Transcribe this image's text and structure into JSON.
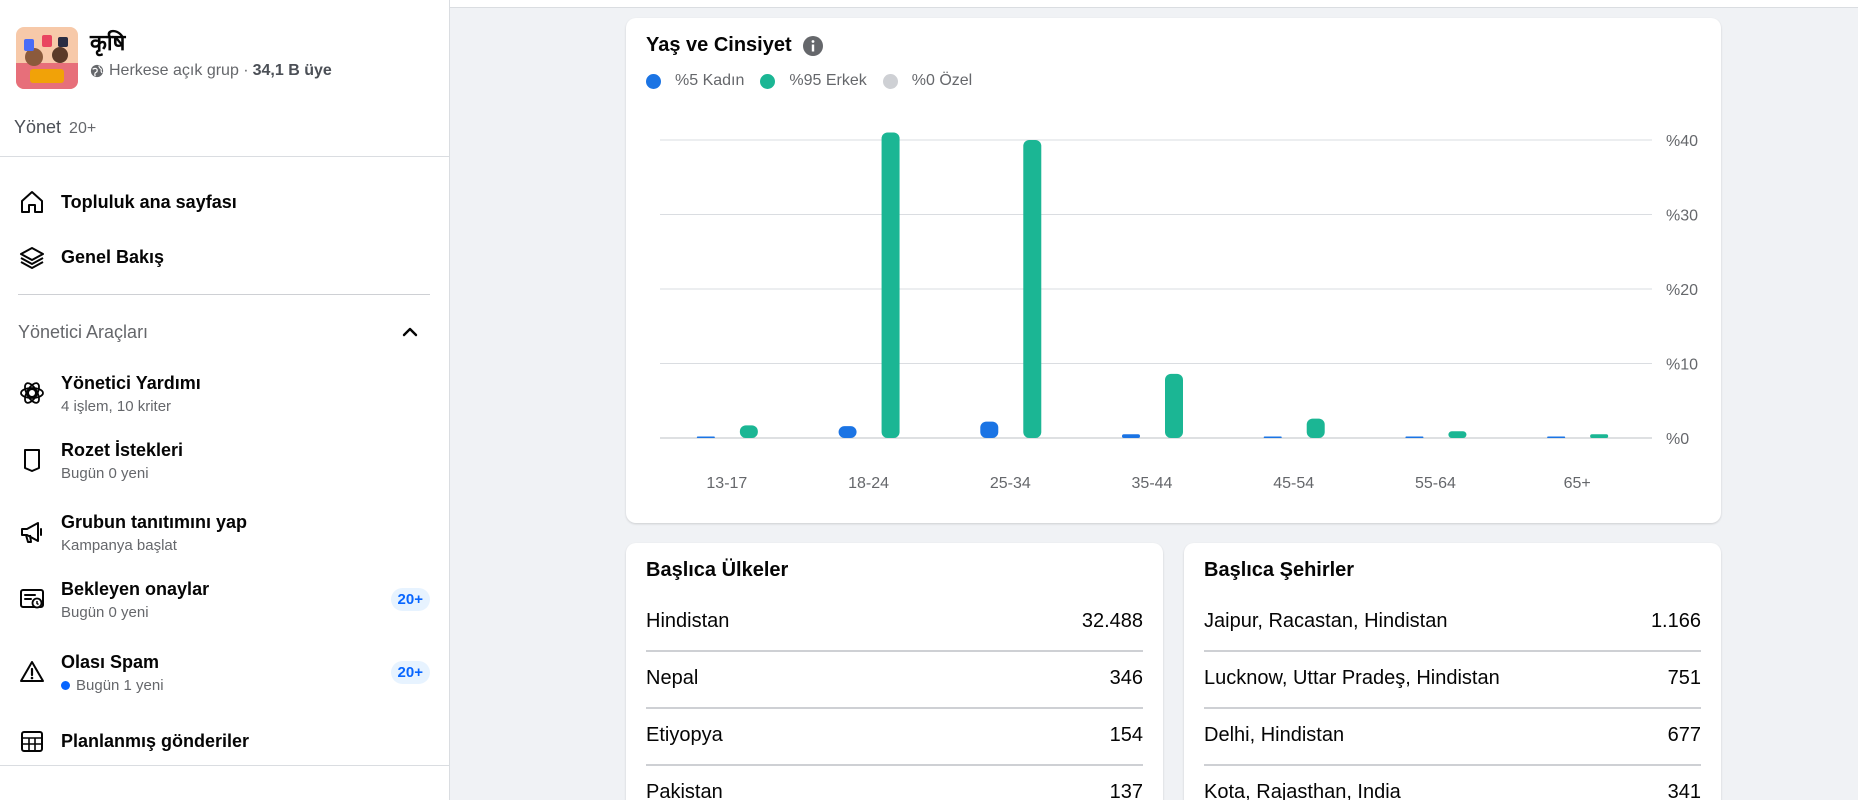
{
  "group": {
    "name": "कृषि",
    "privacy": "Herkese açık grup ·",
    "members": "34,1 B üye"
  },
  "manage": {
    "label": "Yönet",
    "count": "20+"
  },
  "nav": [
    {
      "label": "Topluluk ana sayfası",
      "icon": "home-icon"
    },
    {
      "label": "Genel Bakış",
      "icon": "layers-icon"
    }
  ],
  "admin_tools": {
    "title": "Yönetici Araçları",
    "items": [
      {
        "title": "Yönetici Yardımı",
        "sub": "4 işlem, 10 kriter",
        "icon": "admin-assist-icon",
        "badge": ""
      },
      {
        "title": "Rozet İstekleri",
        "sub": "Bugün 0 yeni",
        "icon": "badge-request-icon",
        "badge": ""
      },
      {
        "title": "Grubun tanıtımını yap",
        "sub": "Kampanya başlat",
        "icon": "megaphone-icon",
        "badge": ""
      },
      {
        "title": "Bekleyen onaylar",
        "sub": "Bugün 0 yeni",
        "icon": "pending-approvals-icon",
        "badge": "20+"
      },
      {
        "title": "Olası Spam",
        "sub": "Bugün 1 yeni",
        "icon": "warning-icon",
        "badge": "20+"
      },
      {
        "title": "Planlanmış gönderiler",
        "sub": "",
        "icon": "calendar-icon",
        "badge": ""
      }
    ]
  },
  "age_gender": {
    "title": "Yaş ve Cinsiyet",
    "legend": [
      {
        "label": "%5 Kadın",
        "color": "#1b74e4"
      },
      {
        "label": "%95 Erkek",
        "color": "#1bb694"
      },
      {
        "label": "%0 Özel",
        "color": "#ced0d4"
      }
    ]
  },
  "chart_data": {
    "type": "bar",
    "title": "Yaş ve Cinsiyet",
    "categories": [
      "13-17",
      "18-24",
      "25-34",
      "35-44",
      "45-54",
      "55-64",
      "65+"
    ],
    "series": [
      {
        "name": "%5 Kadın",
        "color": "#1b74e4",
        "values": [
          0.1,
          1.6,
          2.2,
          0.5,
          0.2,
          0.1,
          0.1
        ]
      },
      {
        "name": "%95 Erkek",
        "color": "#1bb694",
        "values": [
          1.7,
          41.0,
          40.0,
          8.6,
          2.6,
          0.9,
          0.5
        ]
      }
    ],
    "yticks": [
      "%40",
      "%30",
      "%20",
      "%10",
      "%0"
    ],
    "ylim": [
      0,
      40
    ],
    "grid": true,
    "y_axis_side": "right"
  },
  "countries": {
    "title": "Başlıca Ülkeler",
    "rows": [
      {
        "name": "Hindistan",
        "value": "32.488"
      },
      {
        "name": "Nepal",
        "value": "346"
      },
      {
        "name": "Etiyopya",
        "value": "154"
      },
      {
        "name": "Pakistan",
        "value": "137"
      }
    ]
  },
  "cities": {
    "title": "Başlıca Şehirler",
    "rows": [
      {
        "name": "Jaipur, Racastan, Hindistan",
        "value": "1.166"
      },
      {
        "name": "Lucknow, Uttar Pradeş, Hindistan",
        "value": "751"
      },
      {
        "name": "Delhi, Hindistan",
        "value": "677"
      },
      {
        "name": "Kota, Rajasthan, India",
        "value": "341"
      }
    ]
  }
}
